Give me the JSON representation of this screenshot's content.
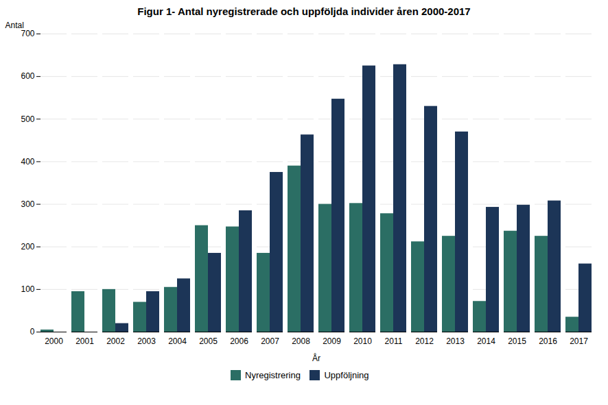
{
  "chart_data": {
    "type": "bar",
    "title": "Figur 1- Antal nyregistrerade och uppföljda individer åren 2000-2017",
    "xlabel": "År",
    "ylabel": "Antal",
    "categories": [
      "2000",
      "2001",
      "2002",
      "2003",
      "2004",
      "2005",
      "2006",
      "2007",
      "2008",
      "2009",
      "2010",
      "2011",
      "2012",
      "2013",
      "2014",
      "2015",
      "2016",
      "2017"
    ],
    "series": [
      {
        "name": "Nyregistrering",
        "color": "#2b6e64",
        "values": [
          5,
          95,
          100,
          70,
          105,
          250,
          247,
          185,
          390,
          300,
          302,
          278,
          212,
          225,
          72,
          237,
          225,
          35
        ]
      },
      {
        "name": "Uppföljning",
        "color": "#1c3557",
        "values": [
          0,
          0,
          20,
          95,
          125,
          185,
          285,
          375,
          463,
          547,
          625,
          628,
          530,
          470,
          293,
          298,
          308,
          160
        ]
      }
    ],
    "ylim": [
      0,
      700
    ],
    "yticks": [
      0,
      100,
      200,
      300,
      400,
      500,
      600,
      700
    ],
    "grid": true,
    "legend": "bottom"
  }
}
